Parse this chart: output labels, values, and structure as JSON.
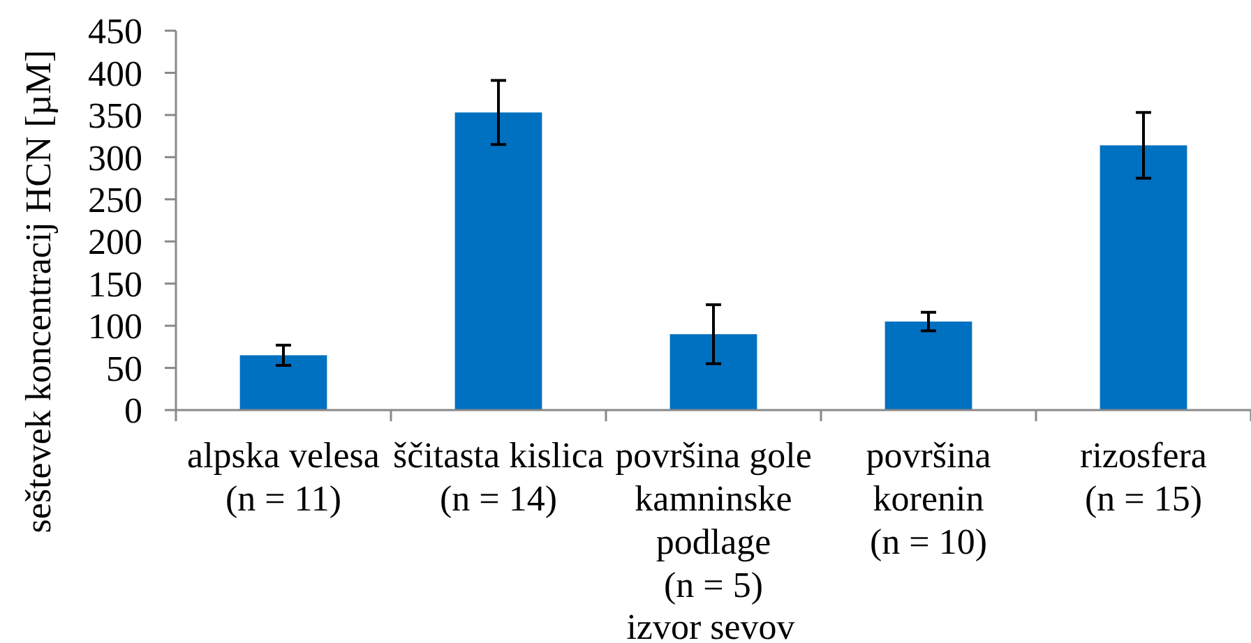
{
  "chart_data": {
    "type": "bar",
    "categories": [
      "alpska velesa\n(n = 11)",
      "ščitasta kislica\n(n = 14)",
      "površina gole\nkamninske\npodlage\n(n = 5)",
      "površina\nkorenin\n(n = 10)",
      "rizosfera\n(n = 15)"
    ],
    "values": [
      65,
      353,
      90,
      105,
      314
    ],
    "errors": [
      12,
      38,
      35,
      11,
      39
    ],
    "color": "#0070c0",
    "xlabel": "izvor sevov",
    "ylabel": "seštevek koncentracij HCN [µM]",
    "ylim": [
      0,
      450
    ],
    "yticks": [
      0,
      50,
      100,
      150,
      200,
      250,
      300,
      350,
      400,
      450
    ]
  }
}
